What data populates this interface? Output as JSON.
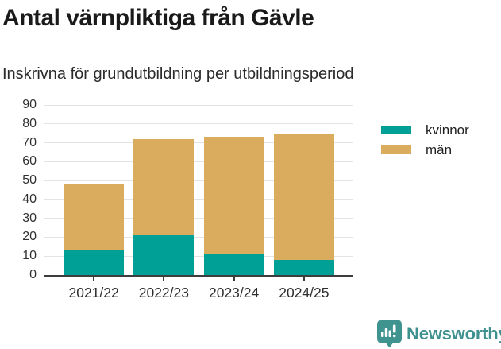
{
  "header": {
    "title": "Antal värnpliktiga från Gävle",
    "subtitle": "Inskrivna för grundutbildning per utbildningsperiod"
  },
  "chart_data": {
    "type": "bar",
    "stacked": true,
    "title": "Antal värnpliktiga från Gävle",
    "subtitle": "Inskrivna för grundutbildning per utbildningsperiod",
    "categories": [
      "2021/22",
      "2022/23",
      "2023/24",
      "2024/25"
    ],
    "series": [
      {
        "name": "kvinnor",
        "color": "#00a096",
        "values": [
          13,
          21,
          11,
          8
        ]
      },
      {
        "name": "män",
        "color": "#d9ac5e",
        "values": [
          35,
          51,
          62,
          67
        ]
      }
    ],
    "stack_totals": [
      48,
      72,
      73,
      75
    ],
    "xlabel": "",
    "ylabel": "",
    "ylim": [
      0,
      90
    ],
    "yticks": [
      0,
      10,
      20,
      30,
      40,
      50,
      60,
      70,
      80,
      90
    ],
    "grid": true,
    "legend_position": "right",
    "grid_color": "#e3e3e3",
    "axis_color": "#3d3d3d",
    "tick_label_color": "#303030"
  },
  "footer": {
    "brand": "Newsworthy",
    "brand_color": "#3e918e",
    "logo_icon": "newsworthy-speech-bubble-bar-chart-icon"
  }
}
